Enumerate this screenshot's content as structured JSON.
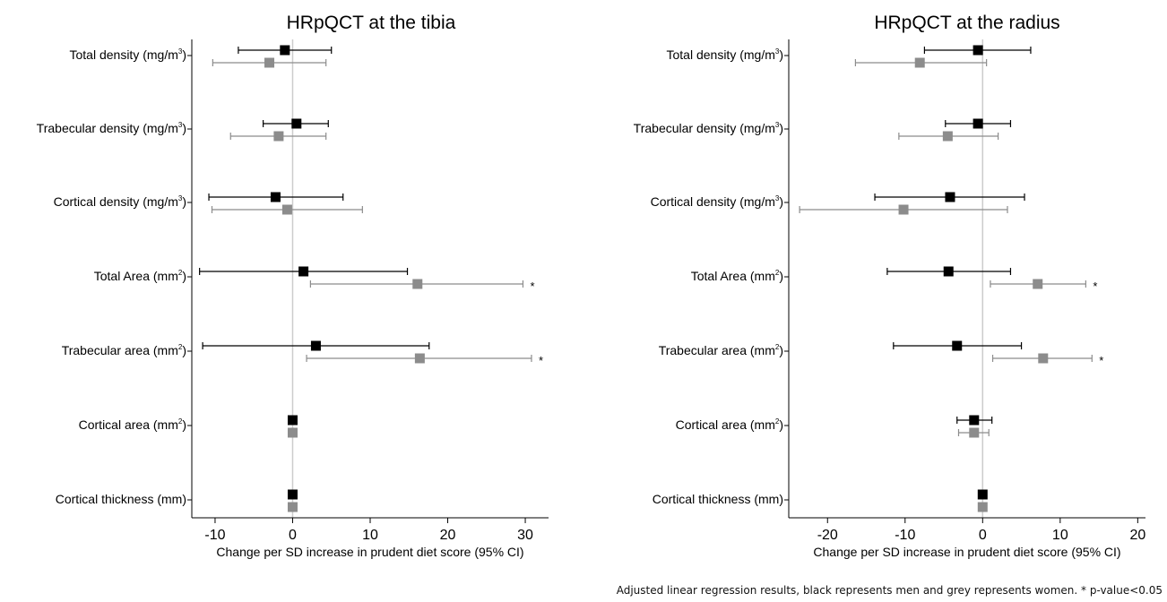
{
  "caption": "Adjusted linear regression results, black represents men and grey represents women. * p-value<0.05",
  "colors": {
    "men": "#000000",
    "women": "#8c8c8c",
    "axis": "#000000",
    "zero_line": "#cccccc"
  },
  "chart_data": [
    {
      "type": "forest",
      "title": "HRpQCT at the tibia",
      "xlabel": "Change per SD increase in prudent diet score (95% CI)",
      "xlim": [
        -13,
        33
      ],
      "xticks": [
        -10,
        0,
        10,
        20,
        30
      ],
      "xtick_labels": [
        "-10",
        "0",
        "10",
        "20",
        "30"
      ],
      "reference_line": 0,
      "rows": [
        {
          "label": "Total density (mg/m",
          "sup": "3",
          "suffix": ")",
          "men": {
            "est": -1.0,
            "lo": -7.0,
            "hi": 5.0
          },
          "women": {
            "est": -3.0,
            "lo": -10.3,
            "hi": 4.3
          },
          "men_sig": "",
          "women_sig": ""
        },
        {
          "label": "Trabecular density (mg/m",
          "sup": "3",
          "suffix": ")",
          "men": {
            "est": 0.5,
            "lo": -3.8,
            "hi": 4.6
          },
          "women": {
            "est": -1.8,
            "lo": -8.0,
            "hi": 4.3
          },
          "men_sig": "",
          "women_sig": ""
        },
        {
          "label": "Cortical density (mg/m",
          "sup": "3",
          "suffix": ")",
          "men": {
            "est": -2.2,
            "lo": -10.8,
            "hi": 6.5
          },
          "women": {
            "est": -0.7,
            "lo": -10.4,
            "hi": 9.0
          },
          "men_sig": "",
          "women_sig": ""
        },
        {
          "label": "Total Area (mm",
          "sup": "2",
          "suffix": ")",
          "men": {
            "est": 1.4,
            "lo": -12.0,
            "hi": 14.8
          },
          "women": {
            "est": 16.1,
            "lo": 2.3,
            "hi": 29.7
          },
          "men_sig": "",
          "women_sig": "*"
        },
        {
          "label": "Trabecular area (mm",
          "sup": "2",
          "suffix": ")",
          "men": {
            "est": 3.0,
            "lo": -11.6,
            "hi": 17.6
          },
          "women": {
            "est": 16.4,
            "lo": 1.8,
            "hi": 30.8
          },
          "men_sig": "",
          "women_sig": "*"
        },
        {
          "label": "Cortical area (mm",
          "sup": "2",
          "suffix": ")",
          "men": {
            "est": 0.0,
            "lo": 0.0,
            "hi": 0.0
          },
          "women": {
            "est": 0.0,
            "lo": 0.0,
            "hi": 0.0
          },
          "men_sig": "",
          "women_sig": ""
        },
        {
          "label": "Cortical thickness (mm)",
          "sup": "",
          "suffix": "",
          "men": {
            "est": 0.0,
            "lo": 0.0,
            "hi": 0.0
          },
          "women": {
            "est": 0.0,
            "lo": 0.0,
            "hi": 0.0
          },
          "men_sig": "",
          "women_sig": ""
        }
      ]
    },
    {
      "type": "forest",
      "title": "HRpQCT at the radius",
      "xlabel": "Change per SD increase in prudent diet score (95% CI)",
      "xlim": [
        -25,
        21
      ],
      "xticks": [
        -20,
        -10,
        0,
        10,
        20
      ],
      "xtick_labels": [
        "-20",
        "-10",
        "0",
        "10",
        "20"
      ],
      "reference_line": 0,
      "rows": [
        {
          "label": "Total density (mg/m",
          "sup": "3",
          "suffix": ")",
          "men": {
            "est": -0.6,
            "lo": -7.5,
            "hi": 6.2
          },
          "women": {
            "est": -8.1,
            "lo": -16.4,
            "hi": 0.5
          },
          "men_sig": "",
          "women_sig": ""
        },
        {
          "label": "Trabecular density (mg/m",
          "sup": "3",
          "suffix": ")",
          "men": {
            "est": -0.6,
            "lo": -4.8,
            "hi": 3.6
          },
          "women": {
            "est": -4.5,
            "lo": -10.8,
            "hi": 2.0
          },
          "men_sig": "",
          "women_sig": ""
        },
        {
          "label": "Cortical density (mg/m",
          "sup": "3",
          "suffix": ")",
          "men": {
            "est": -4.2,
            "lo": -13.9,
            "hi": 5.4
          },
          "women": {
            "est": -10.2,
            "lo": -23.6,
            "hi": 3.2
          },
          "men_sig": "",
          "women_sig": ""
        },
        {
          "label": "Total Area (mm",
          "sup": "2",
          "suffix": ")",
          "men": {
            "est": -4.4,
            "lo": -12.3,
            "hi": 3.6
          },
          "women": {
            "est": 7.1,
            "lo": 1.0,
            "hi": 13.3
          },
          "men_sig": "",
          "women_sig": "*"
        },
        {
          "label": "Trabecular area (mm",
          "sup": "2",
          "suffix": ")",
          "men": {
            "est": -3.3,
            "lo": -11.5,
            "hi": 5.0
          },
          "women": {
            "est": 7.8,
            "lo": 1.3,
            "hi": 14.1
          },
          "men_sig": "",
          "women_sig": "*"
        },
        {
          "label": "Cortical area (mm",
          "sup": "2",
          "suffix": ")",
          "men": {
            "est": -1.1,
            "lo": -3.3,
            "hi": 1.2
          },
          "women": {
            "est": -1.1,
            "lo": -3.1,
            "hi": 0.8
          },
          "men_sig": "",
          "women_sig": ""
        },
        {
          "label": "Cortical thickness (mm)",
          "sup": "",
          "suffix": "",
          "men": {
            "est": 0.0,
            "lo": 0.0,
            "hi": 0.0
          },
          "women": {
            "est": 0.0,
            "lo": 0.0,
            "hi": 0.0
          },
          "men_sig": "",
          "women_sig": ""
        }
      ]
    }
  ]
}
